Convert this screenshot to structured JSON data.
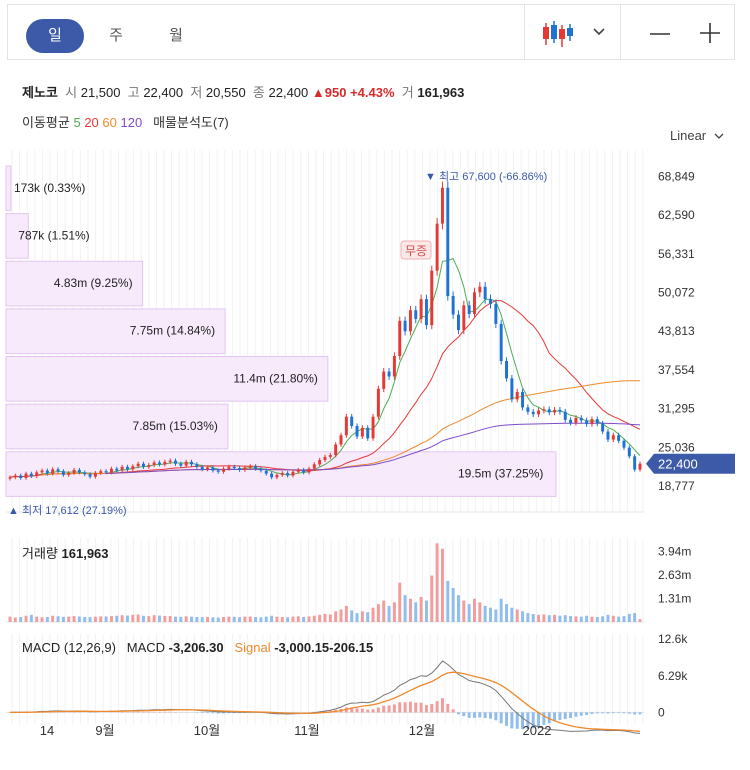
{
  "tabs": [
    {
      "label": "일",
      "active": true
    },
    {
      "label": "주",
      "active": false
    },
    {
      "label": "월",
      "active": false
    }
  ],
  "toolbar": {
    "dropdown_icon": "chevron-down-icon",
    "chart_type_icon": "candlestick-icon",
    "zoom_out": "—",
    "zoom_in": "+"
  },
  "quote": {
    "name": "제노코",
    "open_label": "시",
    "open": "21,500",
    "high_label": "고",
    "high": "22,400",
    "low_label": "저",
    "low": "20,550",
    "close_label": "종",
    "close": "22,400",
    "change": "▲950",
    "change_pct": "+4.43%",
    "volume_label": "거",
    "volume": "161,963"
  },
  "indicators": {
    "ma_label": "이동평균",
    "ma": [
      {
        "period": "5",
        "color": "#4caf50"
      },
      {
        "period": "20",
        "color": "#e53935"
      },
      {
        "period": "60",
        "color": "#ef8a2c"
      },
      {
        "period": "120",
        "color": "#7e4cc9"
      }
    ],
    "vp_label": "매물분석도(7)"
  },
  "scale_label": "Linear",
  "chart_data": {
    "type": "candlestick",
    "yaxis": {
      "ticks": [
        "68,849",
        "62,590",
        "56,331",
        "50,072",
        "43,813",
        "37,554",
        "31,295",
        "25,036",
        "18,777"
      ],
      "range": [
        14600,
        73100
      ]
    },
    "xaxis": {
      "ticks": [
        "14",
        "9월",
        "10월",
        "11월",
        "12월",
        "2022"
      ]
    },
    "current_price": "22,400",
    "high_marker": "최고 67,600 (-66.86%)",
    "low_marker": "최저 17,612 (27.19%)",
    "event_label": "무증",
    "volume_profile": [
      {
        "label": "173k (0.33%)",
        "pct": 0.33
      },
      {
        "label": "787k (1.51%)",
        "pct": 1.51
      },
      {
        "label": "4.83m (9.25%)",
        "pct": 9.25
      },
      {
        "label": "7.75m (14.84%)",
        "pct": 14.84
      },
      {
        "label": "11.4m (21.80%)",
        "pct": 21.8
      },
      {
        "label": "7.85m (15.03%)",
        "pct": 15.03
      },
      {
        "label": "19.5m (37.25%)",
        "pct": 37.25
      }
    ],
    "volume_panel": {
      "title": "거래량",
      "value": "161,963",
      "ticks": [
        "3.94m",
        "2.63m",
        "1.31m"
      ],
      "max": 4700000
    },
    "macd_panel": {
      "title": "MACD (12,26,9)",
      "macd_label": "MACD",
      "macd_value": "-3,206.30",
      "signal_label": "Signal",
      "signal_value": "-3,000.15",
      "hist_value": "-206.15",
      "ticks": [
        "12.6k",
        "6.29k",
        "0"
      ]
    },
    "closes": [
      20200,
      20500,
      20100,
      20800,
      20400,
      21000,
      21300,
      20800,
      21500,
      21200,
      20600,
      20900,
      21400,
      21000,
      20700,
      20300,
      20900,
      21200,
      21000,
      21600,
      21300,
      21900,
      21500,
      22000,
      22400,
      21900,
      22200,
      22600,
      22300,
      22700,
      22900,
      22400,
      22100,
      22700,
      22300,
      21900,
      21500,
      21800,
      21300,
      21100,
      21600,
      21900,
      21700,
      21400,
      21800,
      22000,
      21600,
      21300,
      20800,
      20200,
      20600,
      20900,
      20500,
      21100,
      21400,
      21000,
      21600,
      22300,
      23000,
      23500,
      23800,
      25500,
      27000,
      30000,
      28500,
      26800,
      28200,
      26500,
      30000,
      34500,
      37300,
      36500,
      39800,
      45500,
      43800,
      47200,
      45800,
      49000,
      44800,
      53600,
      61200,
      67000,
      49500,
      46500,
      44000,
      48000,
      46600,
      50100,
      51000,
      49000,
      48200,
      45000,
      39000,
      36200,
      32800,
      34000,
      31500,
      30800,
      30400,
      31000,
      31200,
      30700,
      31100,
      30800,
      29500,
      29000,
      29800,
      29400,
      28800,
      29600,
      28900,
      27600,
      26300,
      27000,
      26100,
      25000,
      23600,
      21450,
      22400
    ],
    "volumes": [
      300000,
      250000,
      280000,
      350000,
      400000,
      300000,
      260000,
      280000,
      350000,
      320000,
      290000,
      300000,
      330000,
      310000,
      280000,
      270000,
      300000,
      320000,
      310000,
      330000,
      350000,
      380000,
      360000,
      400000,
      420000,
      350000,
      330000,
      380000,
      360000,
      340000,
      330000,
      300000,
      290000,
      320000,
      300000,
      280000,
      270000,
      290000,
      260000,
      250000,
      280000,
      300000,
      290000,
      270000,
      300000,
      310000,
      280000,
      260000,
      300000,
      350000,
      300000,
      280000,
      260000,
      300000,
      320000,
      280000,
      310000,
      350000,
      400000,
      450000,
      420000,
      600000,
      700000,
      900000,
      650000,
      500000,
      600000,
      550000,
      800000,
      1000000,
      1200000,
      900000,
      1100000,
      2200000,
      1500000,
      1300000,
      1100000,
      1400000,
      1200000,
      2600000,
      4400000,
      4100000,
      2300000,
      1900000,
      1500000,
      1200000,
      1000000,
      1300000,
      1100000,
      900000,
      800000,
      700000,
      1300000,
      1000000,
      800000,
      700000,
      600000,
      500000,
      450000,
      400000,
      420000,
      380000,
      400000,
      350000,
      380000,
      330000,
      320000,
      300000,
      350000,
      300000,
      280000,
      320000,
      400000,
      350000,
      300000,
      330000,
      450000,
      500000,
      161963
    ],
    "macd": {
      "range": [
        -2000,
        13500
      ]
    }
  }
}
